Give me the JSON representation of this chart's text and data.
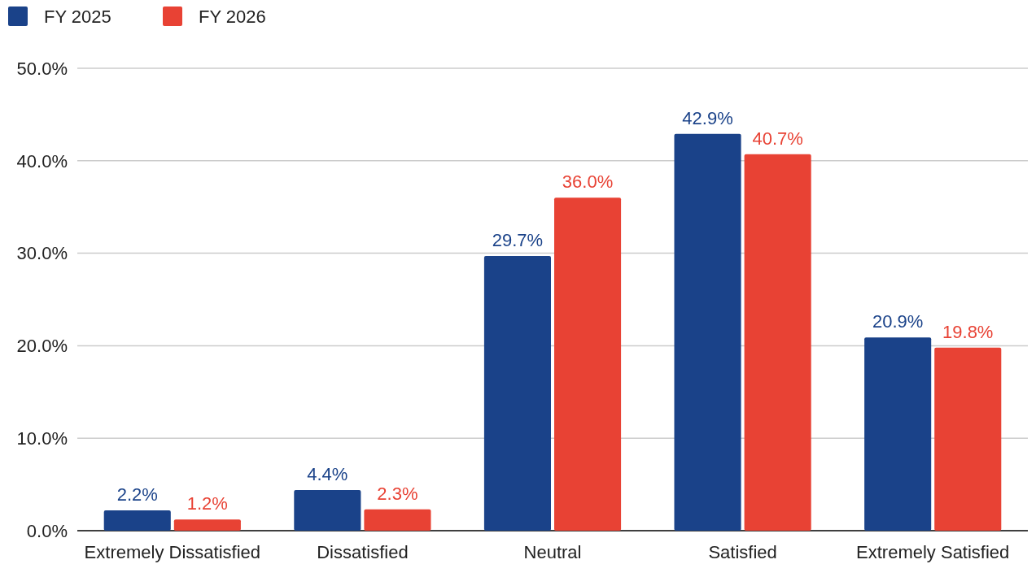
{
  "chart_data": {
    "type": "bar",
    "categories": [
      "Extremely Dissatisfied",
      "Dissatisfied",
      "Neutral",
      "Satisfied",
      "Extremely Satisfied"
    ],
    "series": [
      {
        "name": "FY 2025",
        "color": "#1a4289",
        "values": [
          2.2,
          4.4,
          29.7,
          42.9,
          20.9
        ],
        "value_labels": [
          "2.2%",
          "4.4%",
          "29.7%",
          "42.9%",
          "20.9%"
        ]
      },
      {
        "name": "FY 2026",
        "color": "#e84234",
        "values": [
          1.2,
          2.3,
          36.0,
          40.7,
          19.8
        ],
        "value_labels": [
          "1.2%",
          "2.3%",
          "36.0%",
          "40.7%",
          "19.8%"
        ]
      }
    ],
    "ylim": [
      0,
      50
    ],
    "yticks": [
      {
        "value": 0,
        "label": "0.0%"
      },
      {
        "value": 10,
        "label": "10.0%"
      },
      {
        "value": 20,
        "label": "20.0%"
      },
      {
        "value": 30,
        "label": "30.0%"
      },
      {
        "value": 40,
        "label": "40.0%"
      },
      {
        "value": 50,
        "label": "50.0%"
      }
    ],
    "grid": "y",
    "legend": "top left"
  }
}
